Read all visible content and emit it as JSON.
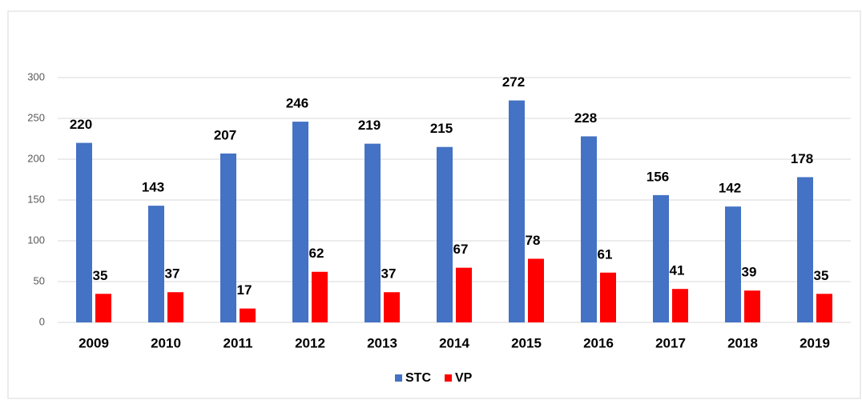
{
  "chart_data": {
    "type": "bar",
    "categories": [
      "2009",
      "2010",
      "2011",
      "2012",
      "2013",
      "2014",
      "2015",
      "2016",
      "2017",
      "2018",
      "2019"
    ],
    "series": [
      {
        "name": "STC",
        "color": "#4472c4",
        "values": [
          220,
          143,
          207,
          246,
          219,
          215,
          272,
          228,
          156,
          142,
          178
        ]
      },
      {
        "name": "VP",
        "color": "#ff0000",
        "values": [
          35,
          37,
          17,
          62,
          37,
          67,
          78,
          61,
          41,
          39,
          35
        ]
      }
    ],
    "ylim": [
      0,
      300
    ],
    "yticks": [
      0,
      50,
      100,
      150,
      200,
      250,
      300
    ],
    "grid": true,
    "legend": "bottom"
  }
}
